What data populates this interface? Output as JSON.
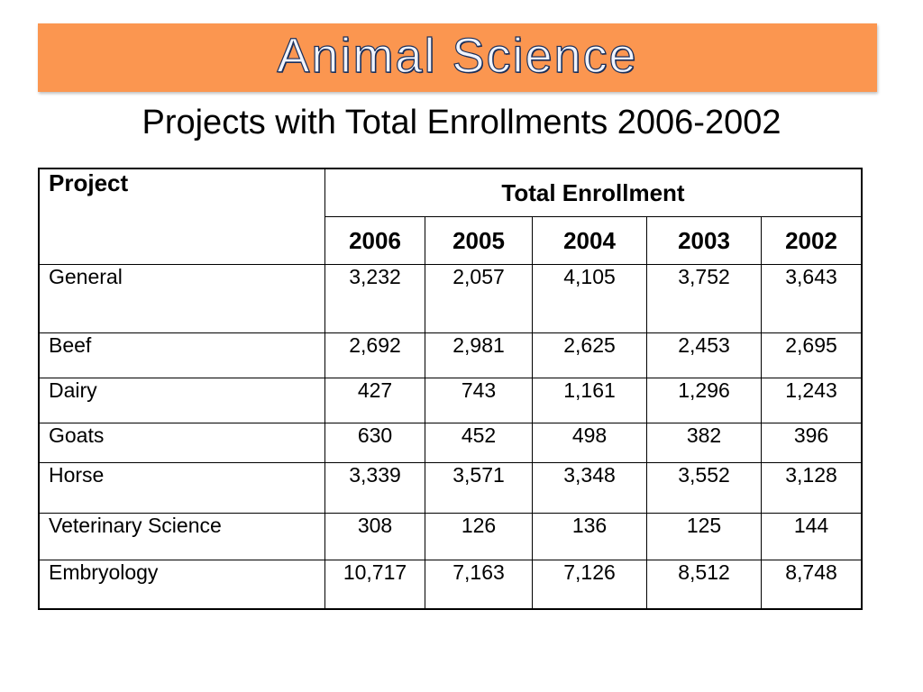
{
  "banner": {
    "title": "Animal Science"
  },
  "subtitle": "Projects with Total Enrollments 2006-2002",
  "table": {
    "project_header": "Project",
    "group_header": "Total Enrollment",
    "years": [
      "2006",
      "2005",
      "2004",
      "2003",
      "2002"
    ],
    "rows": [
      {
        "project": "General",
        "values": [
          "3,232",
          "2,057",
          "4,105",
          "3,752",
          "3,643"
        ]
      },
      {
        "project": "Beef",
        "values": [
          "2,692",
          "2,981",
          "2,625",
          "2,453",
          "2,695"
        ]
      },
      {
        "project": "Dairy",
        "values": [
          "427",
          "743",
          "1,161",
          "1,296",
          "1,243"
        ]
      },
      {
        "project": "Goats",
        "values": [
          "630",
          "452",
          "498",
          "382",
          "396"
        ]
      },
      {
        "project": "Horse",
        "values": [
          "3,339",
          "3,571",
          "3,348",
          "3,552",
          "3,128"
        ]
      },
      {
        "project": "Veterinary Science",
        "values": [
          "308",
          "126",
          "136",
          "125",
          "144"
        ]
      },
      {
        "project": "Embryology",
        "values": [
          "10,717",
          "7,163",
          "7,126",
          "8,512",
          "8,748"
        ]
      }
    ]
  },
  "colors": {
    "banner_bg": "#fb9650",
    "banner_text_outline": "#1a2f5a"
  }
}
